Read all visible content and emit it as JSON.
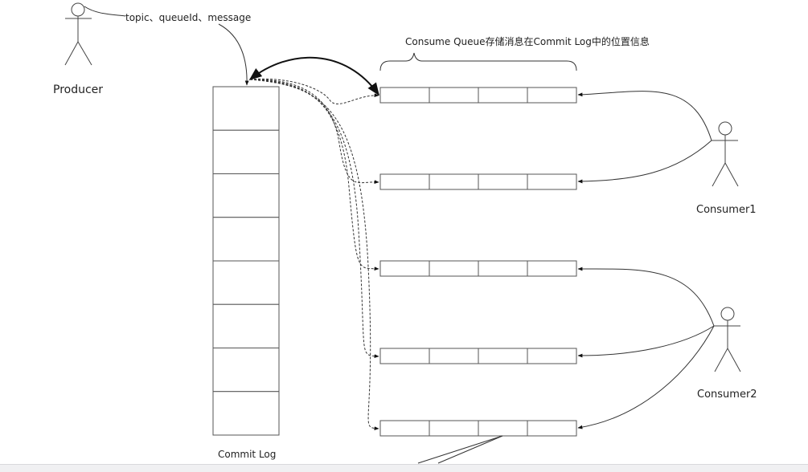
{
  "producer": {
    "label": "Producer",
    "message_label": "topic、queueId、message"
  },
  "commit_log": {
    "label": "Commit Log",
    "cells": 8
  },
  "consume_queue": {
    "brace_label": "Consume Queue存储消息在Commit Log中的位置信息",
    "queues": 5,
    "cells_per_queue": 4
  },
  "consumers": [
    {
      "label": "Consumer1"
    },
    {
      "label": "Consumer2"
    }
  ],
  "colors": {
    "stroke": "#333333",
    "box": "#555555"
  }
}
